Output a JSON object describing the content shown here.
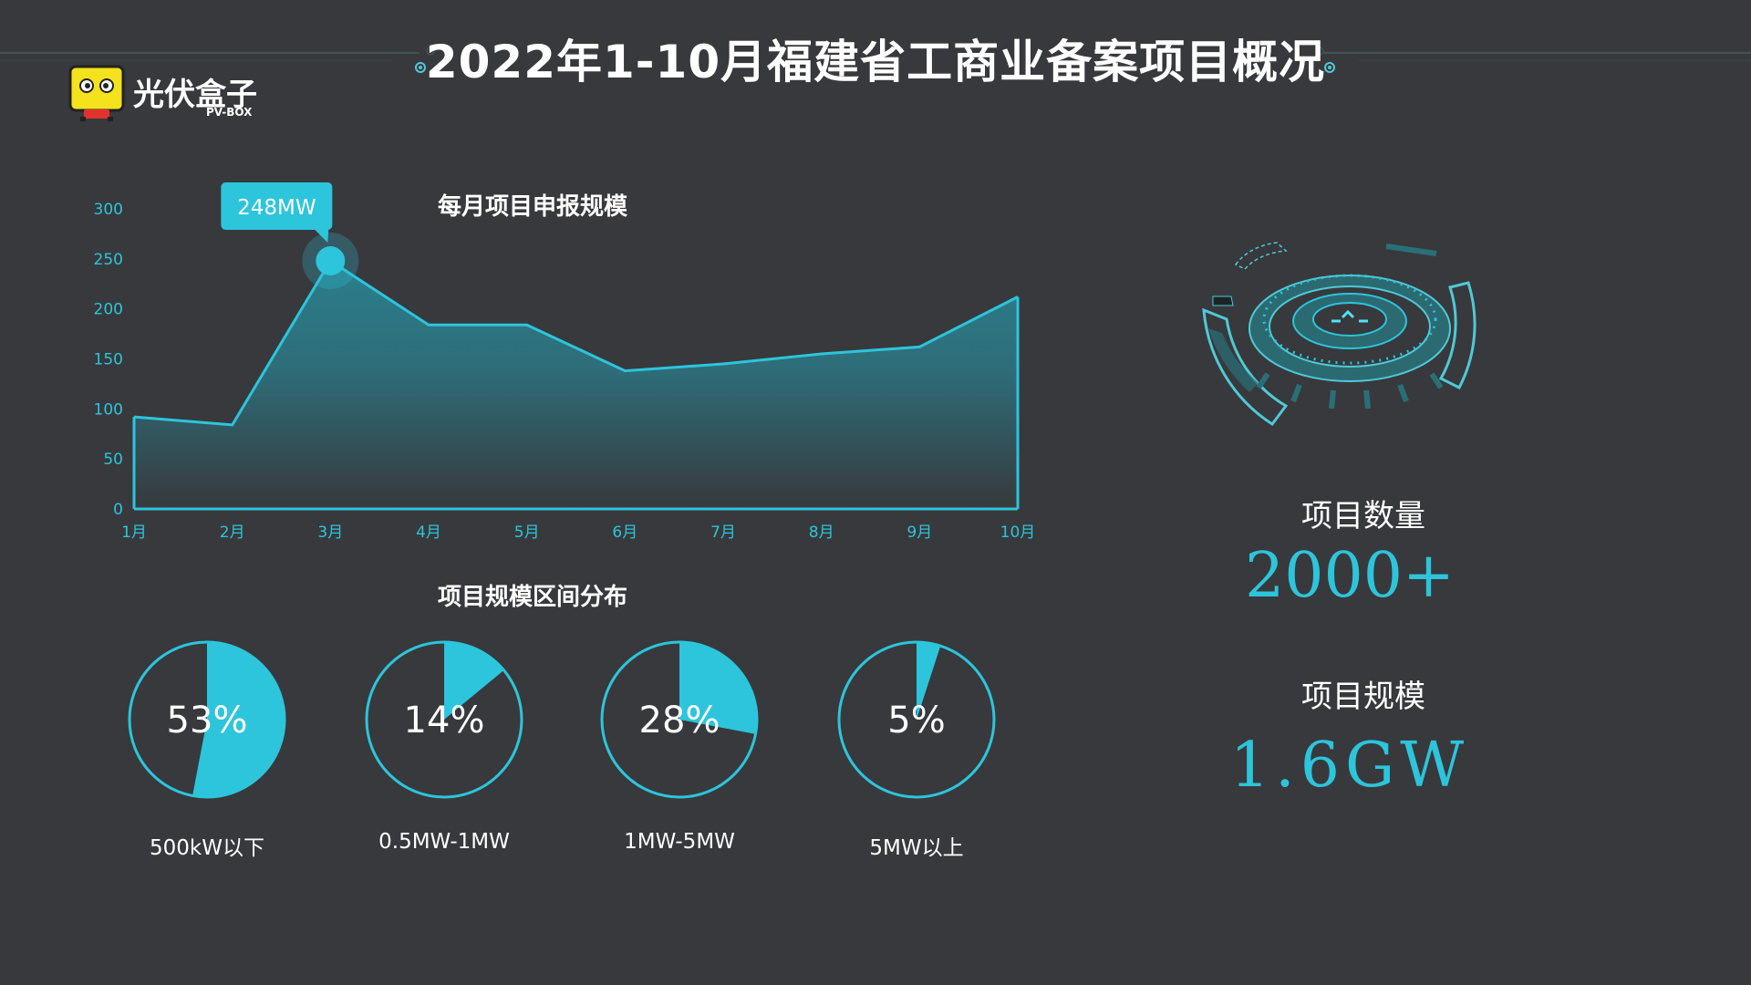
{
  "header": {
    "title": "2022年1-10月福建省工商业备案项目概况"
  },
  "logo": {
    "name": "光伏盒子",
    "sub": "PV-BOX"
  },
  "colors": {
    "background": "#38393c",
    "accent": "#2cc5dc",
    "area_top": "#2b7f8d",
    "area_bottom": "#37393c"
  },
  "monthly_chart": {
    "title": "每月项目申报规模",
    "highlight": {
      "label": "248MW",
      "index": 2
    }
  },
  "distribution": {
    "title": "项目规模区间分布",
    "items": [
      {
        "label": "500kW以下",
        "pct_text": "53%",
        "value": 53
      },
      {
        "label": "0.5MW-1MW",
        "pct_text": "14%",
        "value": 14
      },
      {
        "label": "1MW-5MW",
        "pct_text": "28%",
        "value": 28
      },
      {
        "label": "5MW以上",
        "pct_text": "5%",
        "value": 5
      }
    ]
  },
  "stats": {
    "count_label": "项目数量",
    "count_value": "2000+",
    "scale_label": "项目规模",
    "scale_value": "1.6GW"
  },
  "chart_data": [
    {
      "type": "area",
      "title": "每月项目申报规模",
      "categories": [
        "1月",
        "2月",
        "3月",
        "4月",
        "5月",
        "6月",
        "7月",
        "8月",
        "9月",
        "10月"
      ],
      "values": [
        92,
        84,
        248,
        184,
        184,
        138,
        145,
        155,
        162,
        212
      ],
      "ylim": [
        0,
        300
      ],
      "yticks": [
        0,
        50,
        100,
        150,
        200,
        250,
        300
      ],
      "grid": false,
      "annotation": "248MW"
    },
    {
      "type": "pie",
      "title": "项目规模区间分布",
      "categories": [
        "500kW以下",
        "0.5MW-1MW",
        "1MW-5MW",
        "5MW以上"
      ],
      "values": [
        53,
        14,
        28,
        5
      ]
    }
  ]
}
